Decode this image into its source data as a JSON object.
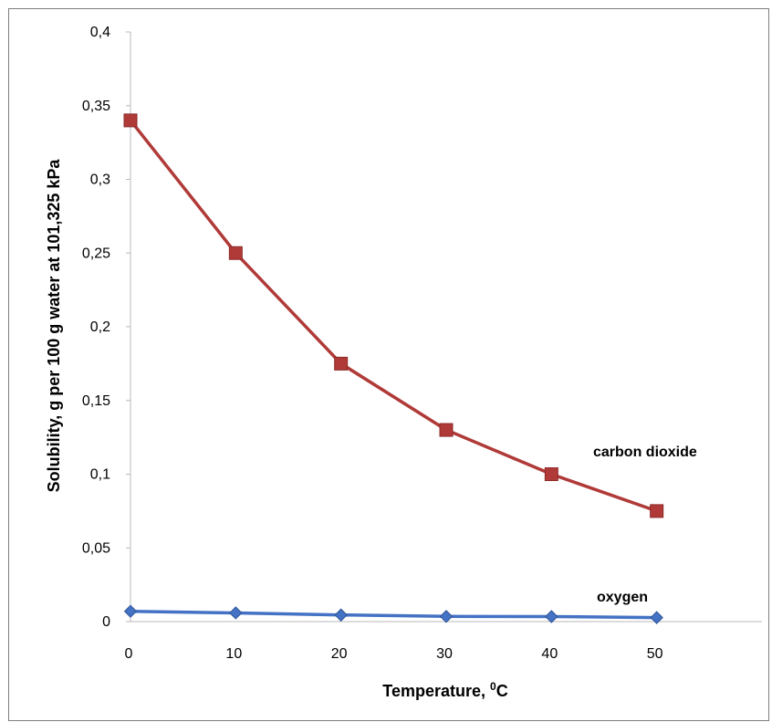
{
  "chart_data": {
    "type": "line",
    "title": "",
    "xlabel": "Temperature, ",
    "xlabel_sup": "0",
    "xlabel_unit": "C",
    "ylabel": "Solubility, g per 100 g water at 101,325 kPa",
    "xlim": [
      0,
      60
    ],
    "ylim": [
      0,
      0.4
    ],
    "x_ticks": [
      "0",
      "10",
      "20",
      "30",
      "40",
      "50"
    ],
    "y_ticks": [
      "0",
      "0,05",
      "0,1",
      "0,15",
      "0,2",
      "0,25",
      "0,3",
      "0,35",
      "0,4"
    ],
    "x": [
      0,
      10,
      20,
      30,
      40,
      50
    ],
    "grid": false,
    "legend": "inline labels",
    "series": [
      {
        "name": "carbon dioxide",
        "color": "#b03a38",
        "marker": "square",
        "values": [
          0.34,
          0.25,
          0.175,
          0.13,
          0.1,
          0.075
        ]
      },
      {
        "name": "oxygen",
        "color": "#4472c4",
        "marker": "diamond",
        "values": [
          0.007,
          0.0059,
          0.0045,
          0.0035,
          0.0034,
          0.0027
        ]
      }
    ]
  }
}
